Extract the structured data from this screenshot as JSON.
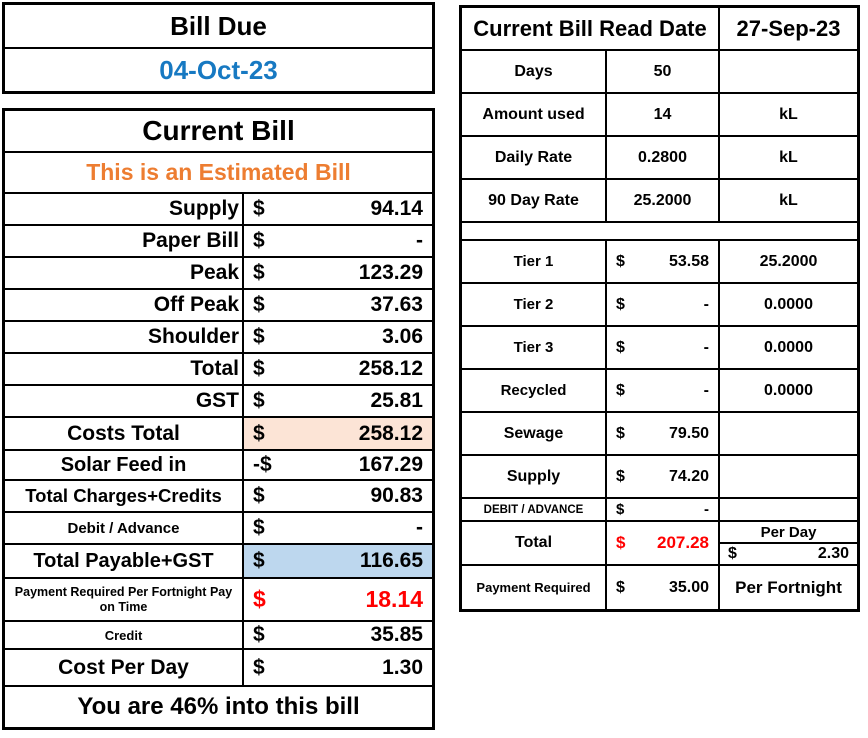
{
  "colors": {
    "date_blue": "#1779c2",
    "estimate_orange": "#ED7D31",
    "alert_red": "#FF0000",
    "highlight_peach": "#FCE4D6",
    "highlight_blue": "#BDD7EE"
  },
  "bill_due": {
    "title": "Bill Due",
    "date": "04-Oct-23"
  },
  "current_bill": {
    "title": "Current Bill",
    "subtitle": "This is an Estimated Bill",
    "rows": [
      {
        "label": "Supply",
        "currency": "$",
        "amount": "94.14"
      },
      {
        "label": "Paper Bill",
        "currency": "$",
        "amount": "-"
      },
      {
        "label": "Peak",
        "currency": "$",
        "amount": "123.29"
      },
      {
        "label": "Off Peak",
        "currency": "$",
        "amount": "37.63"
      },
      {
        "label": "Shoulder",
        "currency": "$",
        "amount": "3.06"
      },
      {
        "label": "Total",
        "currency": "$",
        "amount": "258.12"
      },
      {
        "label": "GST",
        "currency": "$",
        "amount": "25.81"
      },
      {
        "label": "Costs Total",
        "currency": "$",
        "amount": "258.12"
      },
      {
        "label": "Solar Feed in",
        "currency": "-$",
        "amount": "167.29"
      },
      {
        "label": "Total Charges+Credits",
        "currency": "$",
        "amount": "90.83"
      },
      {
        "label": "Debit / Advance",
        "currency": "$",
        "amount": "-"
      },
      {
        "label": "Total Payable+GST",
        "currency": "$",
        "amount": "116.65"
      },
      {
        "label": "Payment Required Per Fortnight Pay on Time",
        "currency": "$",
        "amount": "18.14"
      },
      {
        "label": "Credit",
        "currency": "$",
        "amount": "35.85"
      },
      {
        "label": "Cost Per Day",
        "currency": "$",
        "amount": "1.30"
      }
    ],
    "footer": "You are 46% into this bill"
  },
  "reading": {
    "header": "Current Bill Read Date",
    "date": "27-Sep-23",
    "rows": [
      {
        "label": "Days",
        "value": "50",
        "unit": ""
      },
      {
        "label": "Amount used",
        "value": "14",
        "unit": "kL"
      },
      {
        "label": "Daily Rate",
        "value": "0.2800",
        "unit": "kL"
      },
      {
        "label": "90 Day Rate",
        "value": "25.2000",
        "unit": "kL"
      }
    ],
    "charges": [
      {
        "label": "Tier 1",
        "currency": "$",
        "amount": "53.58",
        "rate": "25.2000"
      },
      {
        "label": "Tier 2",
        "currency": "$",
        "amount": "-",
        "rate": "0.0000"
      },
      {
        "label": "Tier 3",
        "currency": "$",
        "amount": "-",
        "rate": "0.0000"
      },
      {
        "label": "Recycled",
        "currency": "$",
        "amount": "-",
        "rate": "0.0000"
      },
      {
        "label": "Sewage",
        "currency": "$",
        "amount": "79.50",
        "rate": ""
      },
      {
        "label": "Supply",
        "currency": "$",
        "amount": "74.20",
        "rate": ""
      },
      {
        "label": "DEBIT / ADVANCE",
        "currency": "$",
        "amount": "-",
        "rate": ""
      }
    ],
    "total": {
      "label": "Total",
      "currency": "$",
      "amount": "207.28",
      "per_day_label": "Per Day",
      "per_day_currency": "$",
      "per_day_amount": "2.30"
    },
    "payment": {
      "label": "Payment Required",
      "currency": "$",
      "amount": "35.00",
      "unit": "Per Fortnight"
    }
  }
}
